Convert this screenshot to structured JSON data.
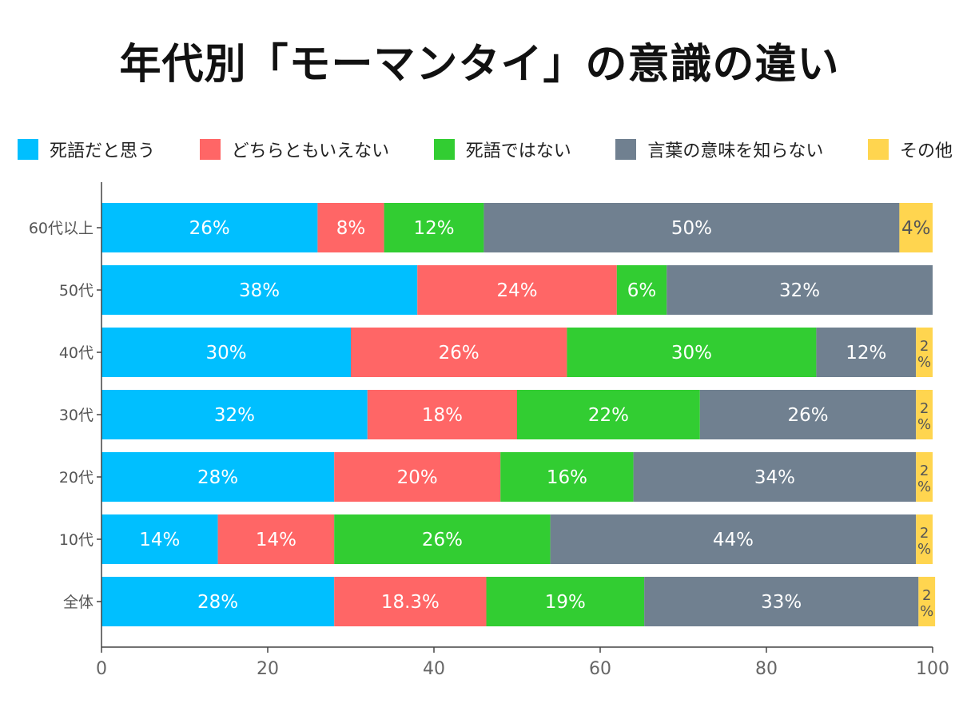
{
  "chart_data": {
    "type": "bar",
    "orientation": "horizontal",
    "stacked": true,
    "title": "年代別「モーマンタイ」の意識の違い",
    "categories": [
      "60代以上",
      "50代",
      "40代",
      "30代",
      "20代",
      "10代",
      "全体"
    ],
    "series": [
      {
        "name": "死語だと思う",
        "color": "#00bfff",
        "values": [
          26,
          38,
          30,
          32,
          28,
          14,
          28
        ],
        "labels": [
          "26%",
          "38%",
          "30%",
          "32%",
          "28%",
          "14%",
          "28%"
        ]
      },
      {
        "name": "どちらともいえない",
        "color": "#ff6666",
        "values": [
          8,
          24,
          26,
          18,
          20,
          14,
          18.3
        ],
        "labels": [
          "8%",
          "24%",
          "26%",
          "18%",
          "20%",
          "14%",
          "18.3%"
        ]
      },
      {
        "name": "死語ではない",
        "color": "#32cd32",
        "values": [
          12,
          6,
          30,
          22,
          16,
          26,
          19
        ],
        "labels": [
          "12%",
          "6%",
          "30%",
          "22%",
          "16%",
          "26%",
          "19%"
        ]
      },
      {
        "name": "言葉の意味を知らない",
        "color": "#708090",
        "values": [
          50,
          32,
          12,
          26,
          34,
          44,
          33
        ],
        "labels": [
          "50%",
          "32%",
          "12%",
          "26%",
          "34%",
          "44%",
          "33%"
        ]
      },
      {
        "name": "その他",
        "color": "#ffd54f",
        "values": [
          4,
          0,
          2,
          2,
          2,
          2,
          2
        ],
        "labels": [
          "4%",
          "",
          "2%",
          "2%",
          "2%",
          "2%",
          "2%"
        ]
      }
    ],
    "xlim": [
      0,
      100
    ],
    "xticks": [
      0,
      20,
      40,
      60,
      80,
      100
    ],
    "grid": false,
    "legend_position": "top"
  }
}
